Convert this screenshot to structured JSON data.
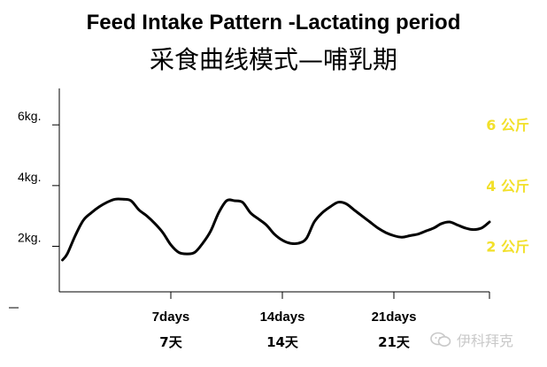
{
  "title": "Feed Intake Pattern -Lactating period",
  "subtitle": "采食曲线模式—哺乳期",
  "watermark": "伊科拜克",
  "chart_data": {
    "type": "line",
    "title": "Feed Intake Pattern -Lactating period",
    "subtitle": "采食曲线模式—哺乳期",
    "x_range": [
      0,
      27
    ],
    "ylim": [
      0.5,
      7.2
    ],
    "x_ticks": [
      7,
      14,
      21,
      27
    ],
    "x_tick_labels": [
      "7days",
      "14days",
      "21days"
    ],
    "x_tick_labels_zh": [
      "7天",
      "14天",
      "21天"
    ],
    "y_ticks": [
      2,
      4,
      6
    ],
    "y_tick_labels": [
      "2kg.",
      "4kg.",
      "6kg."
    ],
    "right_labels": [
      {
        "value": 6,
        "text": "6 公斤"
      },
      {
        "value": 4,
        "text": "4 公斤"
      },
      {
        "value": 2,
        "text": "2 公斤"
      }
    ],
    "right_label_color": "#f2e02a",
    "line_color": "#000000",
    "series": [
      {
        "x": [
          0.2,
          0.5,
          1.0,
          1.5,
          2.0,
          2.5,
          3.0,
          3.5,
          4.0,
          4.5,
          5.0,
          5.5,
          6.0,
          6.5,
          7.0,
          7.5,
          8.0,
          8.5,
          9.0,
          9.5,
          10.0,
          10.5,
          11.0,
          11.5,
          12.0,
          12.5,
          13.0,
          13.5,
          14.0,
          14.5,
          15.0,
          15.5,
          16.0,
          16.5,
          17.0,
          17.5,
          18.0,
          18.5,
          19.0,
          19.5,
          20.0,
          20.5,
          21.0,
          21.5,
          22.0,
          22.5,
          23.0,
          23.5,
          24.0,
          24.5,
          25.0,
          25.5,
          26.0,
          26.5,
          27.0
        ],
        "y": [
          1.55,
          1.75,
          2.35,
          2.85,
          3.1,
          3.3,
          3.45,
          3.55,
          3.55,
          3.5,
          3.2,
          3.0,
          2.75,
          2.45,
          2.05,
          1.8,
          1.75,
          1.8,
          2.1,
          2.5,
          3.1,
          3.5,
          3.5,
          3.45,
          3.1,
          2.9,
          2.7,
          2.4,
          2.2,
          2.1,
          2.1,
          2.25,
          2.8,
          3.1,
          3.3,
          3.45,
          3.4,
          3.2,
          3.0,
          2.8,
          2.6,
          2.45,
          2.35,
          2.3,
          2.35,
          2.4,
          2.5,
          2.6,
          2.75,
          2.8,
          2.7,
          2.6,
          2.55,
          2.6,
          2.8
        ]
      }
    ]
  }
}
